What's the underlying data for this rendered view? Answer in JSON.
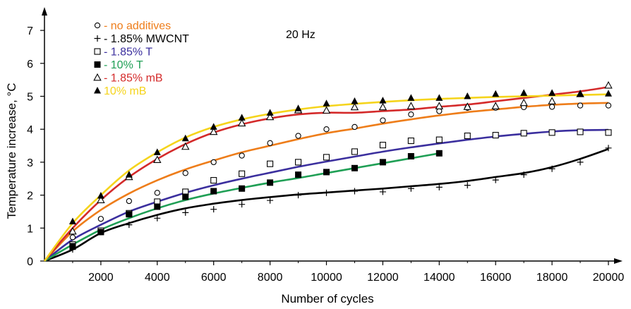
{
  "chart_data": {
    "type": "scatter",
    "title": "",
    "annotation": "20 Hz",
    "xlabel": "Number of cycles",
    "ylabel": "Temperature increase, °C",
    "xlim": [
      0,
      20500
    ],
    "ylim": [
      0,
      7.5
    ],
    "xticks": [
      2000,
      4000,
      6000,
      8000,
      10000,
      12000,
      14000,
      16000,
      18000,
      20000
    ],
    "yticks": [
      0,
      1,
      2,
      3,
      4,
      5,
      6,
      7
    ],
    "grid": false,
    "legend_position": "top-left",
    "series": [
      {
        "name": "- no additives",
        "marker": "circle-open",
        "color": "#ee7d1a",
        "points": [
          [
            1000,
            0.72
          ],
          [
            2000,
            1.28
          ],
          [
            3000,
            1.82
          ],
          [
            4000,
            2.07
          ],
          [
            5000,
            2.67
          ],
          [
            6000,
            3.0
          ],
          [
            7000,
            3.2
          ],
          [
            8000,
            3.58
          ],
          [
            9000,
            3.8
          ],
          [
            10000,
            4.0
          ],
          [
            11000,
            4.07
          ],
          [
            12000,
            4.27
          ],
          [
            13000,
            4.45
          ],
          [
            14000,
            4.55
          ],
          [
            15000,
            4.65
          ],
          [
            16000,
            4.65
          ],
          [
            17000,
            4.67
          ],
          [
            18000,
            4.68
          ],
          [
            19000,
            4.72
          ],
          [
            20000,
            4.72
          ]
        ],
        "curve": [
          [
            0,
            0
          ],
          [
            1000,
            0.9
          ],
          [
            2000,
            1.55
          ],
          [
            3000,
            2.05
          ],
          [
            4000,
            2.45
          ],
          [
            5000,
            2.78
          ],
          [
            6000,
            3.05
          ],
          [
            7000,
            3.3
          ],
          [
            8000,
            3.5
          ],
          [
            9000,
            3.7
          ],
          [
            10000,
            3.88
          ],
          [
            11000,
            4.02
          ],
          [
            12000,
            4.17
          ],
          [
            13000,
            4.3
          ],
          [
            14000,
            4.42
          ],
          [
            15000,
            4.52
          ],
          [
            16000,
            4.6
          ],
          [
            17000,
            4.68
          ],
          [
            18000,
            4.74
          ],
          [
            19000,
            4.78
          ],
          [
            20000,
            4.8
          ]
        ]
      },
      {
        "name": "- 1.85% MWCNT",
        "marker": "plus",
        "color": "#000000",
        "points": [
          [
            1000,
            0.35
          ],
          [
            2000,
            0.88
          ],
          [
            3000,
            1.1
          ],
          [
            4000,
            1.3
          ],
          [
            5000,
            1.47
          ],
          [
            6000,
            1.57
          ],
          [
            7000,
            1.72
          ],
          [
            8000,
            1.84
          ],
          [
            9000,
            2.0
          ],
          [
            10000,
            2.07
          ],
          [
            11000,
            2.12
          ],
          [
            12000,
            2.1
          ],
          [
            13000,
            2.2
          ],
          [
            14000,
            2.24
          ],
          [
            15000,
            2.3
          ],
          [
            16000,
            2.46
          ],
          [
            17000,
            2.62
          ],
          [
            18000,
            2.8
          ],
          [
            19000,
            3.0
          ],
          [
            20000,
            3.43
          ]
        ],
        "curve": [
          [
            0,
            0
          ],
          [
            1000,
            0.35
          ],
          [
            2000,
            0.85
          ],
          [
            3000,
            1.15
          ],
          [
            4000,
            1.4
          ],
          [
            5000,
            1.6
          ],
          [
            6000,
            1.74
          ],
          [
            7000,
            1.85
          ],
          [
            8000,
            1.94
          ],
          [
            9000,
            2.02
          ],
          [
            10000,
            2.08
          ],
          [
            11000,
            2.14
          ],
          [
            12000,
            2.2
          ],
          [
            13000,
            2.27
          ],
          [
            14000,
            2.34
          ],
          [
            15000,
            2.43
          ],
          [
            16000,
            2.55
          ],
          [
            17000,
            2.67
          ],
          [
            18000,
            2.85
          ],
          [
            19000,
            3.1
          ],
          [
            20000,
            3.4
          ]
        ]
      },
      {
        "name": "- 1.85% T",
        "marker": "square-open",
        "color": "#3b2f9e",
        "points": [
          [
            1000,
            0.5
          ],
          [
            2000,
            0.92
          ],
          [
            3000,
            1.45
          ],
          [
            4000,
            1.8
          ],
          [
            5000,
            2.1
          ],
          [
            6000,
            2.45
          ],
          [
            7000,
            2.65
          ],
          [
            8000,
            2.95
          ],
          [
            9000,
            3.0
          ],
          [
            10000,
            3.15
          ],
          [
            11000,
            3.32
          ],
          [
            12000,
            3.52
          ],
          [
            13000,
            3.65
          ],
          [
            14000,
            3.68
          ],
          [
            15000,
            3.8
          ],
          [
            16000,
            3.82
          ],
          [
            17000,
            3.88
          ],
          [
            18000,
            3.9
          ],
          [
            19000,
            3.92
          ],
          [
            20000,
            3.9
          ]
        ],
        "curve": [
          [
            0,
            0
          ],
          [
            1000,
            0.65
          ],
          [
            2000,
            1.1
          ],
          [
            3000,
            1.5
          ],
          [
            4000,
            1.8
          ],
          [
            5000,
            2.07
          ],
          [
            6000,
            2.3
          ],
          [
            7000,
            2.5
          ],
          [
            8000,
            2.68
          ],
          [
            9000,
            2.86
          ],
          [
            10000,
            3.02
          ],
          [
            11000,
            3.17
          ],
          [
            12000,
            3.32
          ],
          [
            13000,
            3.45
          ],
          [
            14000,
            3.57
          ],
          [
            15000,
            3.68
          ],
          [
            16000,
            3.78
          ],
          [
            17000,
            3.86
          ],
          [
            18000,
            3.93
          ],
          [
            19000,
            3.97
          ],
          [
            20000,
            3.98
          ]
        ]
      },
      {
        "name": "- 10% T",
        "marker": "square-filled",
        "color": "#1f9f55",
        "points": [
          [
            1000,
            0.45
          ],
          [
            2000,
            0.88
          ],
          [
            3000,
            1.42
          ],
          [
            4000,
            1.65
          ],
          [
            5000,
            1.95
          ],
          [
            6000,
            2.12
          ],
          [
            7000,
            2.2
          ],
          [
            8000,
            2.38
          ],
          [
            9000,
            2.62
          ],
          [
            10000,
            2.7
          ],
          [
            11000,
            2.82
          ],
          [
            12000,
            3.0
          ],
          [
            13000,
            3.18
          ],
          [
            14000,
            3.27
          ]
        ],
        "curve": [
          [
            0,
            0
          ],
          [
            1000,
            0.5
          ],
          [
            2000,
            0.95
          ],
          [
            3000,
            1.3
          ],
          [
            4000,
            1.6
          ],
          [
            5000,
            1.85
          ],
          [
            6000,
            2.05
          ],
          [
            7000,
            2.22
          ],
          [
            8000,
            2.38
          ],
          [
            9000,
            2.52
          ],
          [
            10000,
            2.67
          ],
          [
            11000,
            2.82
          ],
          [
            12000,
            2.97
          ],
          [
            13000,
            3.12
          ],
          [
            14000,
            3.27
          ]
        ]
      },
      {
        "name": "- 1.85% mB",
        "marker": "triangle-open",
        "color": "#d42a2a",
        "points": [
          [
            1000,
            0.9
          ],
          [
            2000,
            1.85
          ],
          [
            3000,
            2.55
          ],
          [
            4000,
            3.07
          ],
          [
            5000,
            3.47
          ],
          [
            6000,
            3.92
          ],
          [
            7000,
            4.18
          ],
          [
            8000,
            4.37
          ],
          [
            9000,
            4.58
          ],
          [
            10000,
            4.57
          ],
          [
            11000,
            4.67
          ],
          [
            12000,
            4.67
          ],
          [
            13000,
            4.7
          ],
          [
            14000,
            4.7
          ],
          [
            15000,
            4.68
          ],
          [
            16000,
            4.7
          ],
          [
            17000,
            4.8
          ],
          [
            18000,
            4.85
          ],
          [
            19000,
            5.07
          ],
          [
            20000,
            5.33
          ]
        ],
        "curve": [
          [
            0,
            0
          ],
          [
            1000,
            1.0
          ],
          [
            2000,
            1.85
          ],
          [
            3000,
            2.55
          ],
          [
            4000,
            3.1
          ],
          [
            5000,
            3.55
          ],
          [
            6000,
            3.9
          ],
          [
            7000,
            4.15
          ],
          [
            8000,
            4.33
          ],
          [
            9000,
            4.45
          ],
          [
            10000,
            4.5
          ],
          [
            11000,
            4.5
          ],
          [
            12000,
            4.55
          ],
          [
            13000,
            4.6
          ],
          [
            14000,
            4.68
          ],
          [
            15000,
            4.75
          ],
          [
            16000,
            4.85
          ],
          [
            17000,
            4.95
          ],
          [
            18000,
            5.05
          ],
          [
            19000,
            5.15
          ],
          [
            20000,
            5.28
          ]
        ]
      },
      {
        "name": "10% mB",
        "marker": "triangle-filled",
        "color": "#f5d41c",
        "points": [
          [
            1000,
            1.2
          ],
          [
            2000,
            1.98
          ],
          [
            3000,
            2.62
          ],
          [
            4000,
            3.3
          ],
          [
            5000,
            3.72
          ],
          [
            6000,
            4.07
          ],
          [
            7000,
            4.35
          ],
          [
            8000,
            4.5
          ],
          [
            9000,
            4.63
          ],
          [
            10000,
            4.78
          ],
          [
            11000,
            4.85
          ],
          [
            12000,
            4.87
          ],
          [
            13000,
            4.95
          ],
          [
            14000,
            4.95
          ],
          [
            15000,
            5.0
          ],
          [
            16000,
            5.07
          ],
          [
            17000,
            5.1
          ],
          [
            18000,
            5.1
          ],
          [
            19000,
            5.07
          ],
          [
            20000,
            5.08
          ]
        ],
        "curve": [
          [
            0,
            0
          ],
          [
            1000,
            1.15
          ],
          [
            2000,
            2.0
          ],
          [
            3000,
            2.75
          ],
          [
            4000,
            3.3
          ],
          [
            5000,
            3.75
          ],
          [
            6000,
            4.07
          ],
          [
            7000,
            4.3
          ],
          [
            8000,
            4.47
          ],
          [
            9000,
            4.6
          ],
          [
            10000,
            4.7
          ],
          [
            11000,
            4.77
          ],
          [
            12000,
            4.83
          ],
          [
            13000,
            4.88
          ],
          [
            14000,
            4.92
          ],
          [
            15000,
            4.95
          ],
          [
            16000,
            4.98
          ],
          [
            17000,
            5.0
          ],
          [
            18000,
            5.02
          ],
          [
            19000,
            5.04
          ],
          [
            20000,
            5.06
          ]
        ]
      }
    ]
  }
}
